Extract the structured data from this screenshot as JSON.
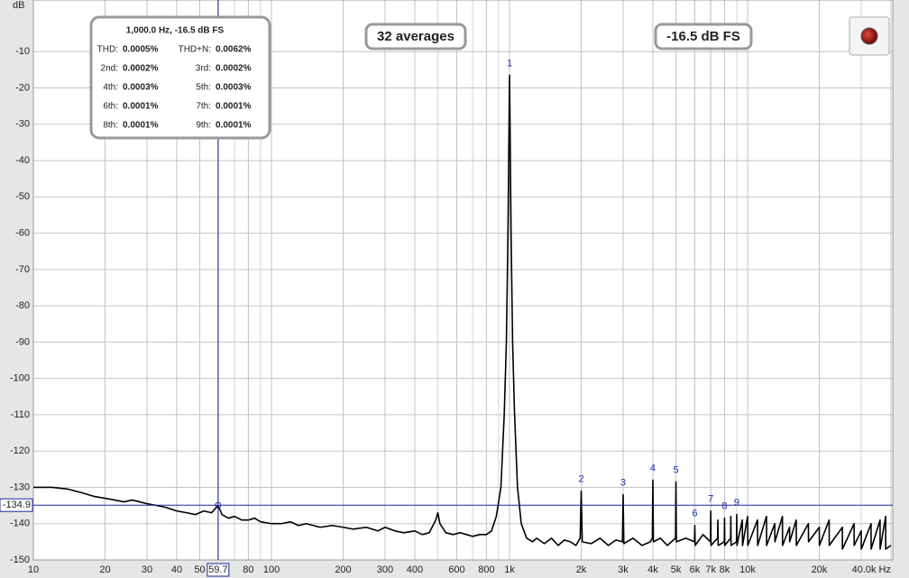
{
  "chart_data": {
    "type": "line",
    "y_label": "dB",
    "log_x": true,
    "grid": true,
    "color": "#000000",
    "xlim": [
      10,
      40000
    ],
    "ylim": [
      -150,
      0
    ],
    "xticks": [
      10,
      20,
      30,
      40,
      50,
      80,
      100,
      200,
      300,
      400,
      600,
      800,
      {
        "value": 1000,
        "label": "1k"
      },
      {
        "value": 2000,
        "label": "2k"
      },
      {
        "value": 3000,
        "label": "3k"
      },
      {
        "value": 4000,
        "label": "4k"
      },
      {
        "value": 5000,
        "label": "5k"
      },
      {
        "value": 6000,
        "label": "6k"
      },
      {
        "value": 7000,
        "label": "7k"
      },
      {
        "value": 8000,
        "label": "8k"
      },
      {
        "value": 10000,
        "label": "10k"
      },
      {
        "value": 20000,
        "label": "20k"
      },
      {
        "value": 40000,
        "label": "40.0k Hz"
      }
    ],
    "yticks": [
      -10,
      -20,
      -30,
      -40,
      -50,
      -60,
      -70,
      -80,
      -90,
      -100,
      -110,
      -120,
      -130,
      -140,
      -150
    ],
    "x": [
      10,
      12,
      14,
      16,
      18,
      20,
      22,
      24,
      26,
      28,
      30,
      33,
      36,
      40,
      44,
      48,
      52,
      56,
      59.7,
      62,
      66,
      70,
      75,
      80,
      85,
      90,
      100,
      110,
      120,
      130,
      140,
      150,
      160,
      180,
      200,
      220,
      250,
      280,
      300,
      330,
      360,
      400,
      430,
      460,
      490,
      500,
      510,
      540,
      580,
      620,
      660,
      700,
      750,
      800,
      840,
      880,
      920,
      950,
      970,
      985,
      995,
      1000,
      1005,
      1015,
      1030,
      1050,
      1080,
      1120,
      1180,
      1250,
      1300,
      1400,
      1500,
      1600,
      1700,
      1800,
      1900,
      1980,
      2000,
      2020,
      2200,
      2400,
      2600,
      2800,
      2980,
      3000,
      3020,
      3300,
      3600,
      3900,
      3980,
      4000,
      4020,
      4300,
      4600,
      4980,
      5000,
      5020,
      5500,
      5980,
      6000,
      6020,
      6500,
      6980,
      7000,
      7020,
      7480,
      7500,
      7520,
      7980,
      8000,
      8020,
      8480,
      8500,
      8520,
      8980,
      9000,
      9020,
      9500,
      9520,
      10000,
      10020,
      11000,
      11020,
      12000,
      12020,
      13000,
      13020,
      14000,
      14020,
      15000,
      15020,
      16000,
      16020,
      18000,
      18020,
      20000,
      20020,
      22000,
      22020,
      25000,
      25020,
      28000,
      28020,
      30000,
      30020,
      33000,
      33020,
      36000,
      36020,
      38000,
      38020,
      40000
    ],
    "values": [
      -130,
      -130,
      -130.5,
      -131.5,
      -132.5,
      -133,
      -133.5,
      -134,
      -133.5,
      -134,
      -134.5,
      -135,
      -135.5,
      -136.5,
      -137,
      -137.5,
      -136.5,
      -137,
      -135,
      -137.5,
      -138.5,
      -138,
      -139,
      -139,
      -138.5,
      -139.5,
      -140,
      -140,
      -139.5,
      -140.5,
      -140,
      -140.5,
      -141,
      -140.5,
      -141,
      -141.5,
      -141,
      -142,
      -141,
      -142,
      -142.5,
      -142,
      -143,
      -142.5,
      -139,
      -137,
      -140,
      -142.5,
      -143,
      -142.5,
      -143,
      -143.5,
      -143,
      -143,
      -142,
      -138,
      -130,
      -110,
      -90,
      -60,
      -30,
      -16.5,
      -30,
      -60,
      -90,
      -110,
      -130,
      -140,
      -144,
      -145,
      -144,
      -145.5,
      -144,
      -146,
      -144.5,
      -145,
      -146,
      -144,
      -131,
      -145,
      -145.5,
      -144,
      -146,
      -144.5,
      -145,
      -132,
      -145.5,
      -144,
      -146,
      -145,
      -144,
      -128,
      -145,
      -144,
      -146,
      -144,
      -128.5,
      -145,
      -144,
      -145,
      -140.5,
      -146,
      -143,
      -145,
      -136.5,
      -146,
      -144,
      -139,
      -146,
      -145,
      -138.5,
      -146,
      -144,
      -138,
      -146,
      -145,
      -137.5,
      -146,
      -139,
      -146,
      -138,
      -146,
      -139,
      -146,
      -138,
      -146,
      -140,
      -145,
      -138,
      -146,
      -141,
      -145,
      -139,
      -146,
      -140,
      -145,
      -141,
      -146,
      -139,
      -146,
      -141,
      -147,
      -140,
      -146,
      -142,
      -147,
      -140,
      -147,
      -139,
      -147,
      -138,
      -147,
      -146
    ],
    "peaks": [
      {
        "label": "1",
        "x": 1000,
        "y": -16.5
      },
      {
        "label": "2",
        "x": 2000,
        "y": -131
      },
      {
        "label": "3",
        "x": 3000,
        "y": -132
      },
      {
        "label": "4",
        "x": 4000,
        "y": -128
      },
      {
        "label": "5",
        "x": 5000,
        "y": -128.5
      },
      {
        "label": "6",
        "x": 6000,
        "y": -140.5
      },
      {
        "label": "7",
        "x": 7000,
        "y": -136.5
      },
      {
        "label": "8",
        "x": 8000,
        "y": -138.5
      },
      {
        "label": "9",
        "x": 9000,
        "y": -137.5
      }
    ],
    "cursor": {
      "x": 59.7,
      "y": -134.9
    }
  },
  "info_box": {
    "title": "1,000.0 Hz, -16.5 dB FS",
    "rows": [
      [
        "THD:",
        "0.0005%",
        "THD+N:",
        "0.0062%"
      ],
      [
        "2nd:",
        "0.0002%",
        "3rd:",
        "0.0002%"
      ],
      [
        "4th:",
        "0.0003%",
        "5th:",
        "0.0003%"
      ],
      [
        "6th:",
        "0.0001%",
        "7th:",
        "0.0001%"
      ],
      [
        "8th:",
        "0.0001%",
        "9th:",
        "0.0001%"
      ]
    ]
  },
  "badges": [
    "32 averages",
    "-16.5 dB FS"
  ]
}
